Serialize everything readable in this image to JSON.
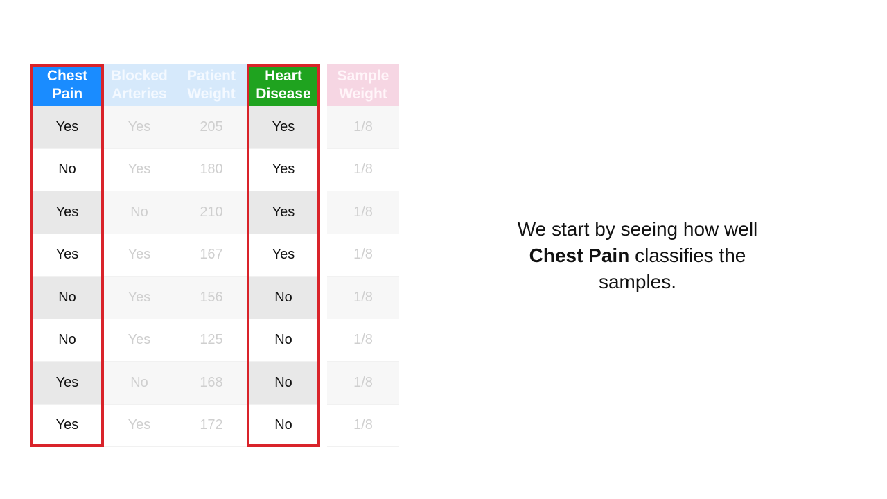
{
  "table": {
    "columns": [
      {
        "header_line1": "Chest",
        "header_line2": "Pain",
        "values": [
          "Yes",
          "No",
          "Yes",
          "Yes",
          "No",
          "No",
          "Yes",
          "Yes"
        ]
      },
      {
        "header_line1": "Blocked",
        "header_line2": "Arteries",
        "values": [
          "Yes",
          "Yes",
          "No",
          "Yes",
          "Yes",
          "Yes",
          "No",
          "Yes"
        ]
      },
      {
        "header_line1": "Patient",
        "header_line2": "Weight",
        "values": [
          "205",
          "180",
          "210",
          "167",
          "156",
          "125",
          "168",
          "172"
        ]
      },
      {
        "header_line1": "Heart",
        "header_line2": "Disease",
        "values": [
          "Yes",
          "Yes",
          "Yes",
          "Yes",
          "No",
          "No",
          "No",
          "No"
        ]
      },
      {
        "header_line1": "Sample",
        "header_line2": "Weight",
        "values": [
          "1/8",
          "1/8",
          "1/8",
          "1/8",
          "1/8",
          "1/8",
          "1/8",
          "1/8"
        ]
      }
    ],
    "highlighted_columns": [
      "Chest Pain",
      "Heart Disease"
    ]
  },
  "caption": {
    "line1": "We start by seeing how well",
    "bold": "Chest Pain",
    "line2_rest": " classifies the",
    "line3": "samples."
  },
  "colors": {
    "chest_pain_header": "#1a8cff",
    "heart_disease_header": "#1fa31f",
    "highlight_border": "#d9232a",
    "faded_header_blue": "#d6e9fb",
    "faded_header_pink": "#f6d6e3"
  }
}
